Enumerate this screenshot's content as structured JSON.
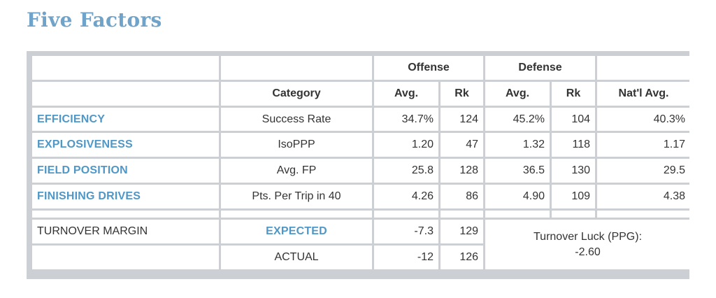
{
  "title": "Five Factors",
  "colors": {
    "accent": "#4f97c6",
    "title": "#6fa3c9",
    "frame": "#ccd0d5"
  },
  "groups": {
    "offense": "Offense",
    "defense": "Defense"
  },
  "columns": {
    "category": "Category",
    "off_avg": "Avg.",
    "off_rk": "Rk",
    "def_avg": "Avg.",
    "def_rk": "Rk",
    "natl_avg": "Nat'l Avg."
  },
  "rows": [
    {
      "factor": "EFFICIENCY",
      "category": "Success Rate",
      "off_avg": "34.7%",
      "off_rk": "124",
      "def_avg": "45.2%",
      "def_rk": "104",
      "natl_avg": "40.3%"
    },
    {
      "factor": "EXPLOSIVENESS",
      "category": "IsoPPP",
      "off_avg": "1.20",
      "off_rk": "47",
      "def_avg": "1.32",
      "def_rk": "118",
      "natl_avg": "1.17"
    },
    {
      "factor": "FIELD POSITION",
      "category": "Avg. FP",
      "off_avg": "25.8",
      "off_rk": "128",
      "def_avg": "36.5",
      "def_rk": "130",
      "natl_avg": "29.5"
    },
    {
      "factor": "FINISHING DRIVES",
      "category": "Pts. Per Trip in 40",
      "off_avg": "4.26",
      "off_rk": "86",
      "def_avg": "4.90",
      "def_rk": "109",
      "natl_avg": "4.38"
    }
  ],
  "turnover": {
    "label": "TURNOVER MARGIN",
    "expected_label": "EXPECTED",
    "expected_value": "-7.3",
    "expected_rk": "129",
    "actual_label": "ACTUAL",
    "actual_value": "-12",
    "actual_rk": "126",
    "luck_label": "Turnover Luck (PPG):",
    "luck_value": "-2.60"
  }
}
